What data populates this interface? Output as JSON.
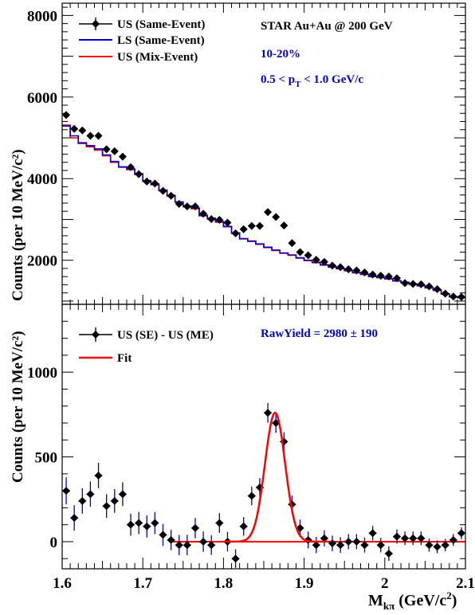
{
  "chart_data": [
    {
      "type": "line",
      "ylabel": "Counts (per 10 MeV/c²)",
      "xlim": [
        1.6,
        2.1
      ],
      "ylim": [
        920,
        8300
      ],
      "yticks": [
        2000,
        4000,
        6000,
        8000
      ],
      "ytick_labels": [
        "2000",
        "4000",
        "6000",
        "8000"
      ],
      "annotations": {
        "title": "STAR Au+Au @ 200 GeV",
        "centrality": "10-20%",
        "pt_range": "0.5 < pT < 1.0 GeV/c"
      },
      "legend": {
        "placement": "top-left",
        "entries": [
          "US (Same-Event)",
          "LS (Same-Event)",
          "US (Mix-Event)"
        ]
      },
      "colors": {
        "same_event": "#000000",
        "ls": "#0000cc",
        "mixed": "#ff0000",
        "annotation_blue": "#0000cc"
      },
      "x": [
        1.605,
        1.615,
        1.625,
        1.635,
        1.645,
        1.655,
        1.665,
        1.675,
        1.685,
        1.695,
        1.705,
        1.715,
        1.725,
        1.735,
        1.745,
        1.755,
        1.765,
        1.775,
        1.785,
        1.795,
        1.805,
        1.815,
        1.825,
        1.835,
        1.845,
        1.855,
        1.865,
        1.875,
        1.885,
        1.895,
        1.905,
        1.915,
        1.925,
        1.935,
        1.945,
        1.955,
        1.965,
        1.975,
        1.985,
        1.995,
        2.005,
        2.015,
        2.025,
        2.035,
        2.045,
        2.055,
        2.065,
        2.075,
        2.085,
        2.095
      ],
      "series": [
        {
          "name": "US (Same-Event)",
          "style": "markers",
          "values": [
            5560,
            5220,
            5180,
            5050,
            5050,
            4720,
            4670,
            4540,
            4280,
            4110,
            3930,
            3880,
            3700,
            3580,
            3380,
            3320,
            3320,
            3140,
            3010,
            2990,
            2920,
            2660,
            2760,
            2840,
            2840,
            3180,
            3060,
            2850,
            2420,
            2200,
            2120,
            2010,
            1960,
            1870,
            1830,
            1780,
            1750,
            1700,
            1650,
            1620,
            1600,
            1560,
            1440,
            1420,
            1410,
            1360,
            1290,
            1180,
            1110,
            1100
          ],
          "errors": [
            80,
            75,
            75,
            75,
            75,
            70,
            70,
            70,
            65,
            65,
            65,
            65,
            65,
            60,
            60,
            60,
            60,
            60,
            58,
            58,
            58,
            55,
            55,
            55,
            55,
            58,
            58,
            55,
            52,
            50,
            50,
            48,
            47,
            46,
            46,
            45,
            45,
            44,
            43,
            43,
            43,
            42,
            40,
            40,
            40,
            39,
            38,
            36,
            35,
            35
          ]
        },
        {
          "name": "LS (Same-Event)",
          "style": "step",
          "values": [
            5290,
            5050,
            4880,
            4810,
            4730,
            4580,
            4420,
            4290,
            4240,
            4120,
            3950,
            3870,
            3720,
            3590,
            3430,
            3330,
            3280,
            3100,
            3030,
            2950,
            2830,
            2670,
            2530,
            2470,
            2400,
            2320,
            2250,
            2180,
            2130,
            2060,
            2000,
            1950,
            1890,
            1840,
            1800,
            1750,
            1700,
            1660,
            1610,
            1580,
            1550,
            1500,
            1460,
            1420,
            1380,
            1330,
            1270,
            1180,
            1110,
            1090
          ]
        },
        {
          "name": "US (Mix-Event)",
          "style": "step",
          "values": [
            5310,
            5000,
            4860,
            4780,
            4700,
            4560,
            4400,
            4280,
            4220,
            4100,
            3930,
            3850,
            3700,
            3570,
            3420,
            3310,
            3260,
            3090,
            3010,
            2930,
            2820,
            2660,
            2520,
            2460,
            2390,
            2310,
            2240,
            2170,
            2120,
            2050,
            1990,
            1940,
            1880,
            1830,
            1790,
            1740,
            1690,
            1650,
            1600,
            1570,
            1540,
            1490,
            1450,
            1410,
            1370,
            1320,
            1260,
            1170,
            1100,
            1080
          ]
        }
      ]
    },
    {
      "type": "scatter",
      "xlabel": "Mkπ (GeV/c²)",
      "ylabel": "Counts (per 10 MeV/c²)",
      "xlim": [
        1.6,
        2.1
      ],
      "ylim": [
        -160,
        1400
      ],
      "xticks": [
        1.6,
        1.7,
        1.8,
        1.9,
        2.0,
        2.1
      ],
      "xtick_labels": [
        "1.6",
        "1.7",
        "1.8",
        "1.9",
        "2",
        "2.1"
      ],
      "yticks": [
        0,
        500,
        1000
      ],
      "ytick_labels": [
        "0",
        "500",
        "1000"
      ],
      "annotations": {
        "raw_yield": "RawYield = 2980  ± 190"
      },
      "legend": {
        "placement": "top-left",
        "entries": [
          "US (SE) - US (ME)",
          "Fit"
        ]
      },
      "colors": {
        "data": "#000000",
        "error_bars": "#0000cc",
        "fit": "#ff0000",
        "annotation_blue": "#0000cc"
      },
      "x": [
        1.605,
        1.615,
        1.625,
        1.635,
        1.645,
        1.655,
        1.665,
        1.675,
        1.685,
        1.695,
        1.705,
        1.715,
        1.725,
        1.735,
        1.745,
        1.755,
        1.765,
        1.775,
        1.785,
        1.795,
        1.805,
        1.815,
        1.825,
        1.835,
        1.845,
        1.855,
        1.865,
        1.875,
        1.885,
        1.895,
        1.905,
        1.915,
        1.925,
        1.935,
        1.945,
        1.955,
        1.965,
        1.975,
        1.985,
        1.995,
        2.005,
        2.015,
        2.025,
        2.035,
        2.045,
        2.055,
        2.065,
        2.075,
        2.085,
        2.095
      ],
      "series": [
        {
          "name": "US (SE) - US (ME)",
          "values": [
            300,
            140,
            240,
            280,
            390,
            210,
            240,
            280,
            100,
            110,
            90,
            110,
            40,
            10,
            -20,
            -20,
            80,
            0,
            -20,
            110,
            0,
            -100,
            90,
            270,
            320,
            760,
            700,
            590,
            220,
            80,
            10,
            -20,
            20,
            -10,
            -20,
            0,
            0,
            -20,
            50,
            -20,
            -70,
            30,
            20,
            20,
            20,
            -20,
            -30,
            -20,
            10,
            50
          ],
          "errors": [
            80,
            75,
            75,
            75,
            75,
            70,
            70,
            70,
            65,
            65,
            65,
            65,
            65,
            60,
            60,
            60,
            60,
            60,
            58,
            58,
            58,
            55,
            55,
            55,
            55,
            58,
            58,
            55,
            52,
            50,
            50,
            48,
            47,
            46,
            46,
            45,
            45,
            44,
            43,
            43,
            43,
            42,
            40,
            40,
            40,
            39,
            38,
            36,
            35,
            35
          ]
        },
        {
          "name": "Fit",
          "style": "gaussian",
          "amplitude": 760,
          "mean": 1.864,
          "sigma": 0.0125,
          "baseline": 0,
          "x_range": [
            1.735,
            2.1
          ]
        }
      ]
    }
  ]
}
